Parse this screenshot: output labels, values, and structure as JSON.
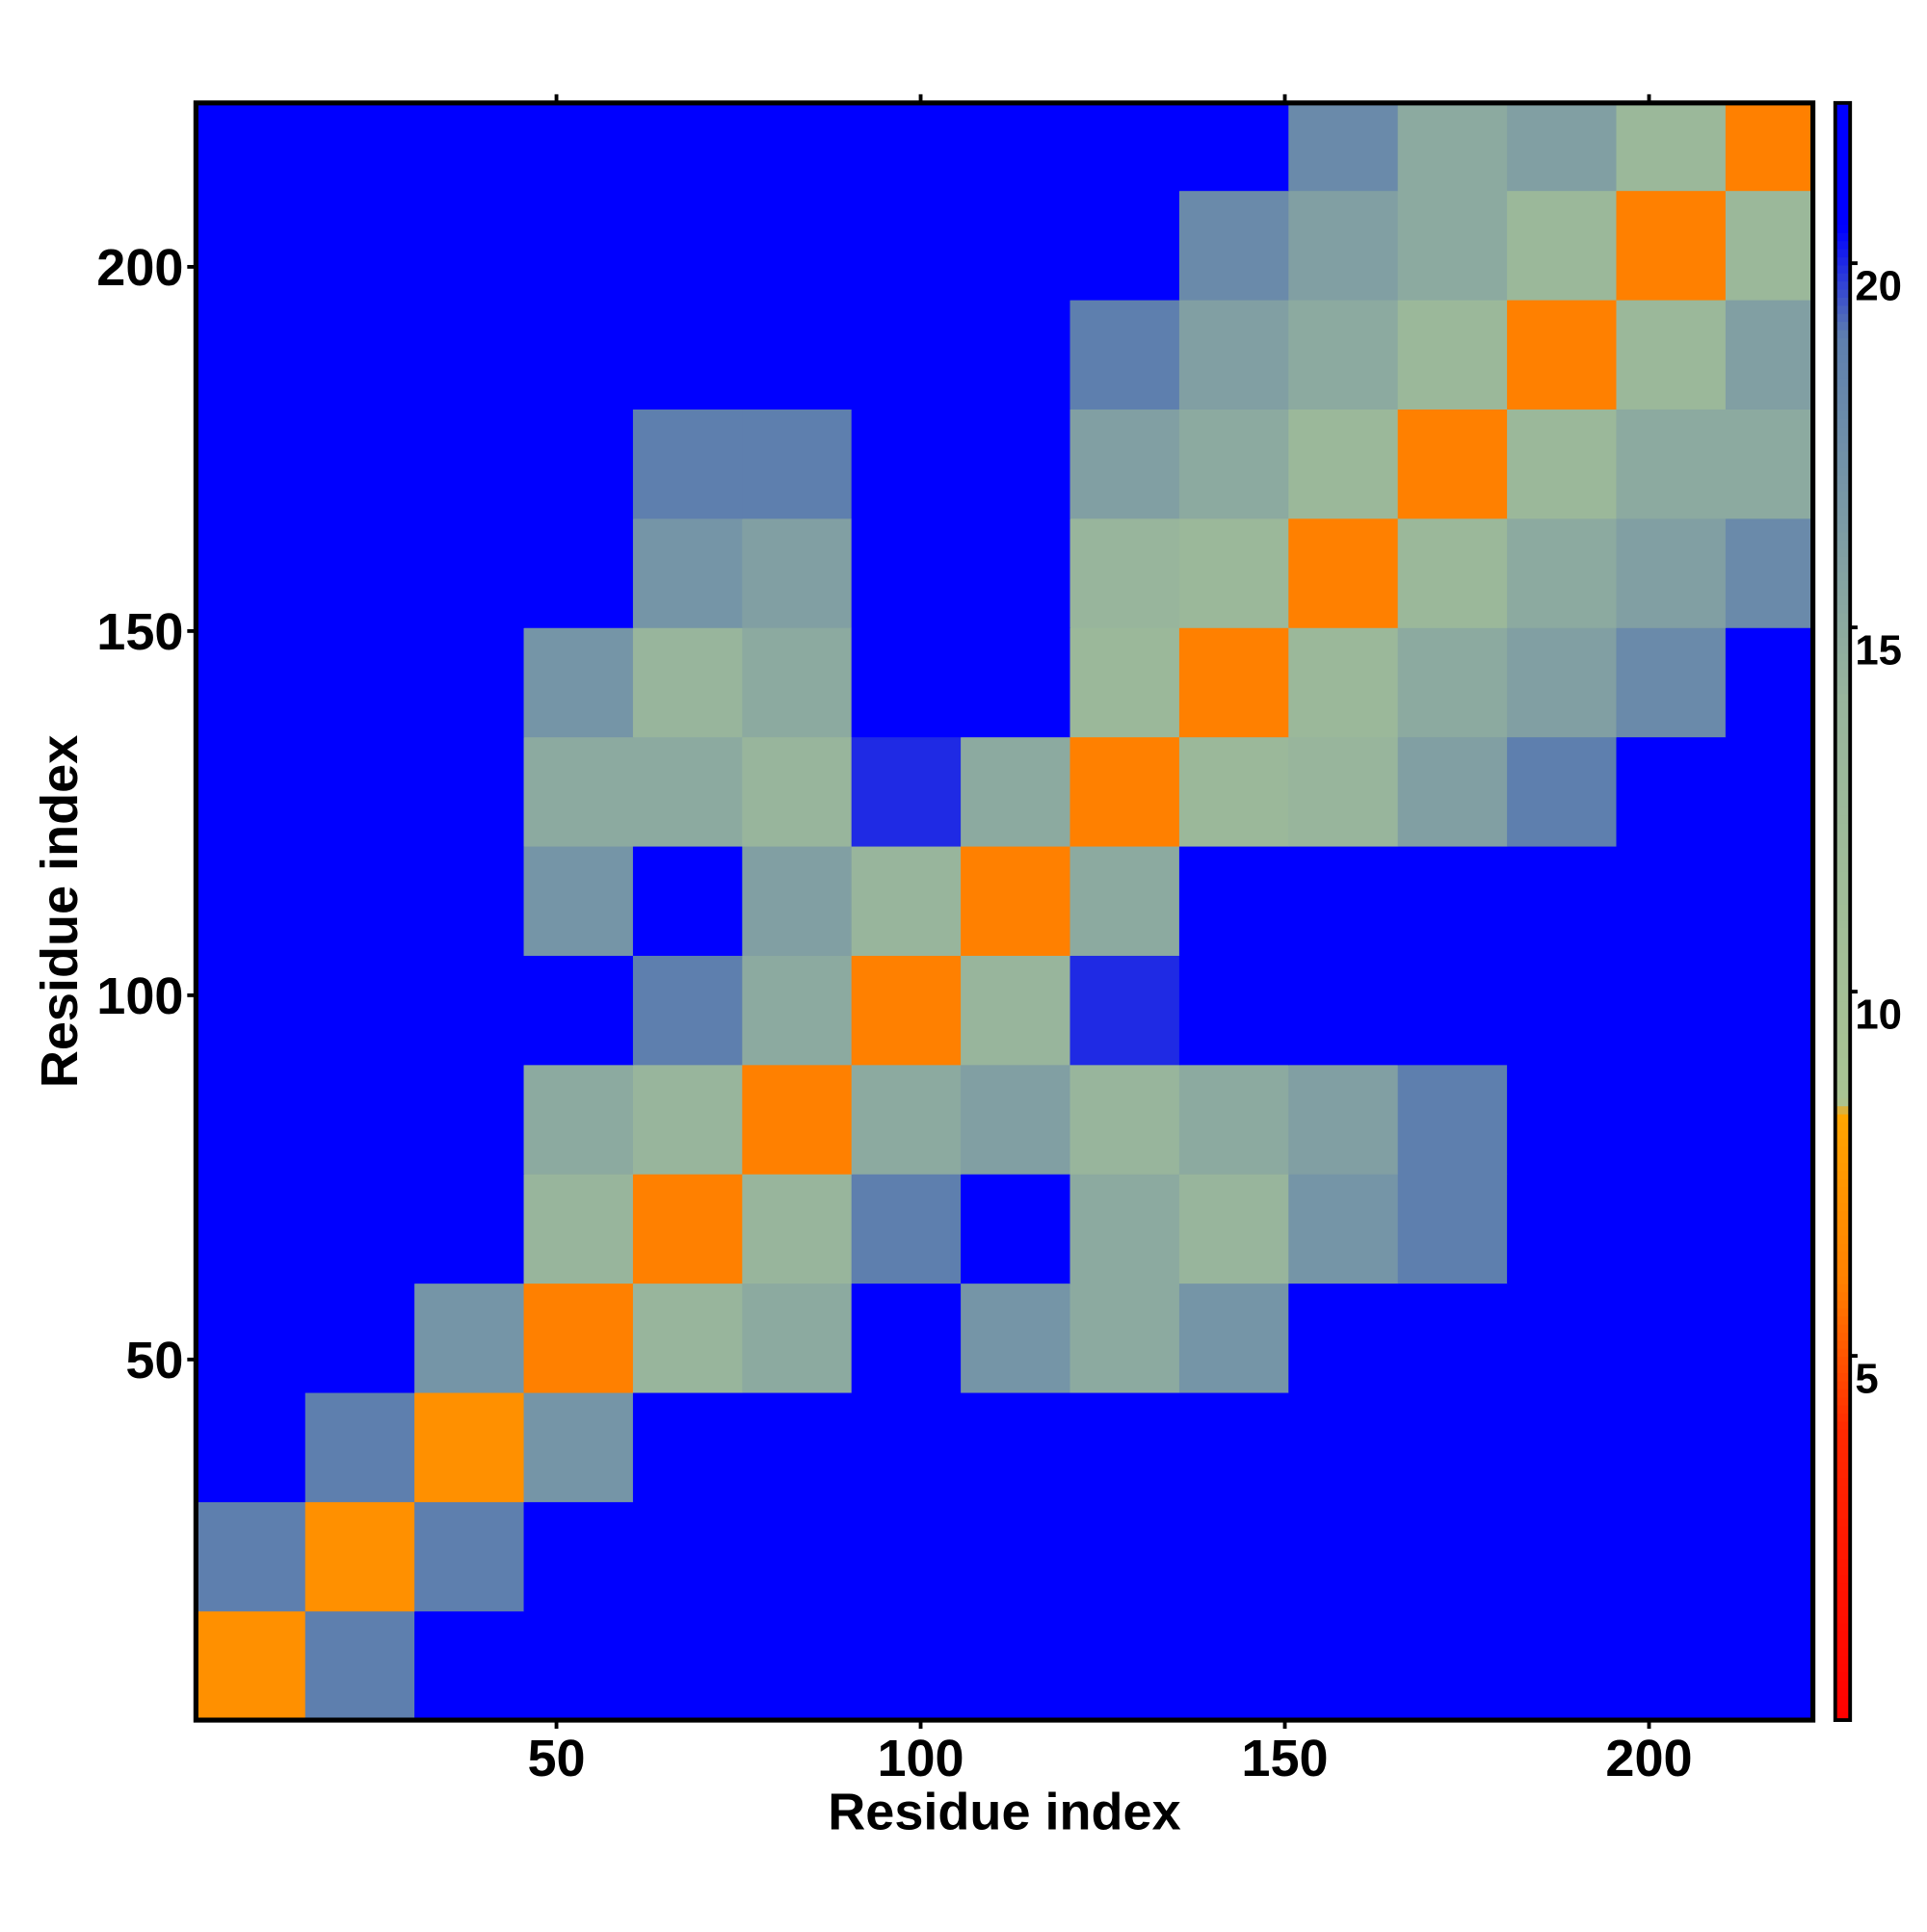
{
  "chart_data": {
    "type": "heatmap",
    "x_label": "Residue index",
    "y_label": "Residue index",
    "bins": [
      0.5,
      15.5,
      30.5,
      45.5,
      60.5,
      75.5,
      90.5,
      105.5,
      120.5,
      135.5,
      150.5,
      165.5,
      180.5,
      195.5,
      210.5,
      222.5
    ],
    "xlim": [
      0.5,
      222.5
    ],
    "ylim": [
      0.5,
      222.5
    ],
    "xticks": [
      50,
      100,
      150,
      200
    ],
    "yticks": [
      50,
      100,
      150,
      200
    ],
    "z": [
      [
        7,
        19,
        22,
        22,
        22,
        22,
        22,
        22,
        22,
        22,
        22,
        22,
        22,
        22,
        22
      ],
      [
        19,
        7,
        19,
        22,
        22,
        22,
        22,
        22,
        22,
        22,
        22,
        22,
        22,
        22,
        22
      ],
      [
        22,
        19,
        7,
        17,
        21,
        22,
        22,
        22,
        22,
        22,
        22,
        22,
        22,
        22,
        22
      ],
      [
        22,
        22,
        17,
        6,
        14,
        15,
        21,
        17,
        15,
        17,
        21,
        22,
        22,
        22,
        22
      ],
      [
        22,
        22,
        21,
        14,
        6,
        14,
        19,
        21,
        15,
        14,
        17,
        19,
        22,
        22,
        22
      ],
      [
        22,
        22,
        22,
        15,
        14,
        6,
        15,
        16,
        14,
        15,
        16,
        19,
        22,
        22,
        22
      ],
      [
        22,
        22,
        22,
        21,
        19,
        15,
        6,
        14,
        20,
        21,
        22,
        22,
        22,
        22,
        22
      ],
      [
        22,
        22,
        22,
        17,
        21,
        16,
        14,
        6,
        15,
        21,
        22,
        22,
        22,
        22,
        22
      ],
      [
        22,
        22,
        22,
        15,
        15,
        14,
        20,
        15,
        6,
        13,
        14,
        16,
        19,
        21,
        22
      ],
      [
        22,
        22,
        22,
        17,
        14,
        15,
        21,
        21,
        13,
        6,
        13,
        15,
        16,
        18,
        21
      ],
      [
        22,
        22,
        22,
        21,
        17,
        16,
        22,
        22,
        14,
        13,
        6,
        13,
        15,
        16,
        18
      ],
      [
        22,
        22,
        22,
        22,
        19,
        19,
        22,
        22,
        16,
        15,
        13,
        6,
        13,
        15,
        15
      ],
      [
        22,
        22,
        22,
        22,
        22,
        22,
        22,
        22,
        19,
        16,
        15,
        13,
        6,
        13,
        16
      ],
      [
        22,
        22,
        22,
        22,
        22,
        22,
        22,
        22,
        21,
        18,
        16,
        15,
        13,
        6,
        13
      ],
      [
        22,
        22,
        22,
        22,
        22,
        22,
        22,
        22,
        22,
        21,
        18,
        15,
        16,
        13,
        6
      ]
    ],
    "clim": [
      0,
      22.2
    ],
    "cticks": [
      5,
      10,
      15,
      20
    ],
    "colorscale": [
      [
        0,
        "#ff0000"
      ],
      [
        4,
        "#ff2a00"
      ],
      [
        6,
        "#ff8000"
      ],
      [
        8.3,
        "#ffa500"
      ],
      [
        8.5,
        "#a9c493"
      ],
      [
        14,
        "#98b59c"
      ],
      [
        19,
        "#5e7fae"
      ],
      [
        20.5,
        "#0000ff"
      ],
      [
        22.2,
        "#0000ff"
      ]
    ]
  }
}
